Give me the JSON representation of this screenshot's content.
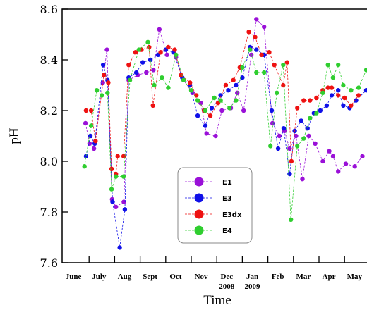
{
  "chart_data": {
    "type": "scatter",
    "xlabel": "Time",
    "ylabel": "pH",
    "ylim": [
      7.6,
      8.6
    ],
    "yticks": [
      "7.6",
      "7.8",
      "8.0",
      "8.2",
      "8.4",
      "8.6"
    ],
    "xticks": [
      {
        "label": "June",
        "label2": ""
      },
      {
        "label": "July",
        "label2": ""
      },
      {
        "label": "Aug",
        "label2": ""
      },
      {
        "label": "Sept",
        "label2": ""
      },
      {
        "label": "Oct",
        "label2": ""
      },
      {
        "label": "Nov",
        "label2": ""
      },
      {
        "label": "Dec",
        "label2": "2008"
      },
      {
        "label": "Jan",
        "label2": "2009"
      },
      {
        "label": "Feb",
        "label2": ""
      },
      {
        "label": "Mar",
        "label2": ""
      },
      {
        "label": "Apr",
        "label2": ""
      },
      {
        "label": "May",
        "label2": ""
      }
    ],
    "x_unit": "months since start of June 2008",
    "grid": false,
    "legend_position": "lower-center",
    "series": [
      {
        "name": "E1",
        "color": "#9a10d8",
        "points": [
          [
            0.86,
            8.15
          ],
          [
            1.02,
            8.07
          ],
          [
            1.19,
            8.05
          ],
          [
            1.54,
            8.31
          ],
          [
            1.7,
            8.44
          ],
          [
            1.9,
            7.85
          ],
          [
            2.05,
            7.82
          ],
          [
            2.36,
            7.84
          ],
          [
            2.55,
            8.32
          ],
          [
            2.9,
            8.34
          ],
          [
            3.24,
            8.35
          ],
          [
            3.52,
            8.36
          ],
          [
            3.75,
            8.52
          ],
          [
            4.05,
            8.42
          ],
          [
            4.4,
            8.41
          ],
          [
            4.7,
            8.32
          ],
          [
            5.05,
            8.27
          ],
          [
            5.37,
            8.23
          ],
          [
            5.6,
            8.11
          ],
          [
            5.95,
            8.1
          ],
          [
            6.2,
            8.2
          ],
          [
            6.55,
            8.21
          ],
          [
            6.8,
            8.27
          ],
          [
            7.05,
            8.2
          ],
          [
            7.35,
            8.42
          ],
          [
            7.55,
            8.56
          ],
          [
            7.85,
            8.53
          ],
          [
            8.18,
            8.15
          ],
          [
            8.45,
            8.1
          ],
          [
            8.65,
            8.12
          ],
          [
            8.85,
            8.05
          ],
          [
            9.1,
            8.1
          ],
          [
            9.35,
            7.93
          ],
          [
            9.6,
            8.1
          ],
          [
            9.85,
            8.07
          ],
          [
            10.15,
            8.0
          ],
          [
            10.4,
            8.04
          ],
          [
            10.55,
            8.02
          ],
          [
            10.75,
            7.96
          ],
          [
            11.05,
            7.99
          ],
          [
            11.4,
            7.98
          ],
          [
            11.7,
            8.02
          ]
        ]
      },
      {
        "name": "E3",
        "color": "#1010e8",
        "points": [
          [
            0.88,
            8.02
          ],
          [
            1.05,
            8.1
          ],
          [
            1.22,
            8.07
          ],
          [
            1.55,
            8.38
          ],
          [
            1.72,
            8.32
          ],
          [
            1.92,
            7.84
          ],
          [
            2.2,
            7.66
          ],
          [
            2.4,
            7.81
          ],
          [
            2.55,
            8.33
          ],
          [
            2.85,
            8.35
          ],
          [
            3.1,
            8.39
          ],
          [
            3.4,
            8.4
          ],
          [
            3.7,
            8.42
          ],
          [
            4.0,
            8.44
          ],
          [
            4.3,
            8.43
          ],
          [
            4.65,
            8.33
          ],
          [
            4.95,
            8.3
          ],
          [
            5.25,
            8.18
          ],
          [
            5.55,
            8.14
          ],
          [
            5.8,
            8.21
          ],
          [
            6.15,
            8.26
          ],
          [
            6.45,
            8.28
          ],
          [
            6.75,
            8.3
          ],
          [
            7.0,
            8.33
          ],
          [
            7.3,
            8.45
          ],
          [
            7.55,
            8.44
          ],
          [
            7.85,
            8.42
          ],
          [
            8.15,
            8.2
          ],
          [
            8.4,
            8.05
          ],
          [
            8.62,
            8.13
          ],
          [
            8.85,
            7.95
          ],
          [
            9.05,
            8.12
          ],
          [
            9.3,
            8.16
          ],
          [
            9.55,
            8.13
          ],
          [
            9.8,
            8.19
          ],
          [
            10.05,
            8.2
          ],
          [
            10.3,
            8.22
          ],
          [
            10.5,
            8.26
          ],
          [
            10.75,
            8.28
          ],
          [
            10.95,
            8.22
          ],
          [
            11.2,
            8.21
          ],
          [
            11.45,
            8.24
          ],
          [
            11.85,
            8.28
          ]
        ]
      },
      {
        "name": "E3dx",
        "color": "#ee1111",
        "points": [
          [
            0.88,
            8.2
          ],
          [
            1.08,
            8.2
          ],
          [
            1.25,
            8.08
          ],
          [
            1.58,
            8.34
          ],
          [
            1.75,
            8.31
          ],
          [
            1.88,
            7.97
          ],
          [
            2.05,
            7.95
          ],
          [
            2.12,
            8.02
          ],
          [
            2.35,
            8.02
          ],
          [
            2.55,
            8.38
          ],
          [
            2.82,
            8.43
          ],
          [
            3.05,
            8.44
          ],
          [
            3.35,
            8.45
          ],
          [
            3.5,
            8.22
          ],
          [
            3.8,
            8.43
          ],
          [
            4.1,
            8.45
          ],
          [
            4.35,
            8.44
          ],
          [
            4.6,
            8.34
          ],
          [
            4.95,
            8.31
          ],
          [
            5.2,
            8.26
          ],
          [
            5.5,
            8.2
          ],
          [
            5.75,
            8.18
          ],
          [
            6.05,
            8.23
          ],
          [
            6.35,
            8.3
          ],
          [
            6.65,
            8.32
          ],
          [
            6.9,
            8.37
          ],
          [
            7.25,
            8.51
          ],
          [
            7.5,
            8.49
          ],
          [
            7.75,
            8.42
          ],
          [
            8.05,
            8.43
          ],
          [
            8.25,
            8.38
          ],
          [
            8.6,
            8.3
          ],
          [
            8.75,
            8.39
          ],
          [
            8.92,
            8.0
          ],
          [
            9.15,
            8.21
          ],
          [
            9.4,
            8.24
          ],
          [
            9.65,
            8.24
          ],
          [
            9.9,
            8.25
          ],
          [
            10.15,
            8.28
          ],
          [
            10.35,
            8.29
          ],
          [
            10.5,
            8.29
          ],
          [
            10.75,
            8.26
          ],
          [
            11.0,
            8.25
          ],
          [
            11.25,
            8.22
          ],
          [
            11.55,
            8.26
          ]
        ]
      },
      {
        "name": "E4",
        "color": "#2fce2f",
        "points": [
          [
            0.82,
            7.98
          ],
          [
            1.08,
            8.14
          ],
          [
            1.3,
            8.28
          ],
          [
            1.5,
            8.26
          ],
          [
            1.72,
            8.27
          ],
          [
            1.88,
            7.89
          ],
          [
            2.05,
            7.94
          ],
          [
            2.35,
            7.94
          ],
          [
            2.6,
            8.32
          ],
          [
            2.95,
            8.44
          ],
          [
            3.3,
            8.47
          ],
          [
            3.55,
            8.3
          ],
          [
            3.85,
            8.33
          ],
          [
            4.1,
            8.29
          ],
          [
            4.4,
            8.42
          ],
          [
            4.7,
            8.32
          ],
          [
            5.0,
            8.28
          ],
          [
            5.25,
            8.24
          ],
          [
            5.55,
            8.2
          ],
          [
            5.9,
            8.25
          ],
          [
            6.15,
            8.24
          ],
          [
            6.5,
            8.21
          ],
          [
            6.75,
            8.24
          ],
          [
            7.0,
            8.37
          ],
          [
            7.3,
            8.44
          ],
          [
            7.55,
            8.35
          ],
          [
            7.85,
            8.35
          ],
          [
            8.1,
            8.06
          ],
          [
            8.35,
            8.27
          ],
          [
            8.6,
            8.38
          ],
          [
            8.9,
            7.77
          ],
          [
            9.15,
            8.06
          ],
          [
            9.4,
            8.09
          ],
          [
            9.65,
            8.17
          ],
          [
            9.9,
            8.19
          ],
          [
            10.15,
            8.27
          ],
          [
            10.35,
            8.38
          ],
          [
            10.55,
            8.33
          ],
          [
            10.75,
            8.38
          ],
          [
            10.95,
            8.3
          ],
          [
            11.25,
            8.28
          ],
          [
            11.55,
            8.29
          ],
          [
            11.85,
            8.36
          ]
        ]
      }
    ]
  }
}
